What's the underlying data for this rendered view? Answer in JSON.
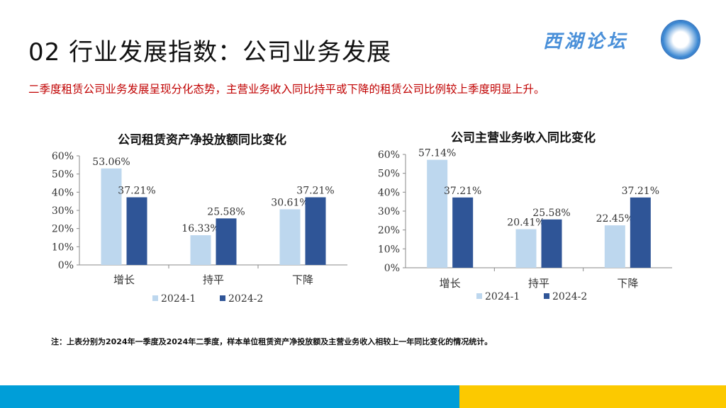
{
  "header": {
    "title": "02 行业发展指数：公司业务发展",
    "subtitle": "二季度租赁公司业务发展呈现分化态势，主营业务收入同比持平或下降的租赁公司比例较上季度明显上升。",
    "logo_text": "西湖论坛"
  },
  "note": "注：上表分别为2024年一季度及2024年二季度，样本单位租赁资产净投放额及主营业务收入相较上一年同比变化的情况统计。",
  "colors": {
    "series1": "#bdd7ee",
    "series2": "#2f5597",
    "bottom_left": "#009ed8",
    "bottom_right": "#fcc900"
  },
  "chart_data": [
    {
      "type": "bar",
      "title": "公司租赁资产净投放额同比变化",
      "categories": [
        "增长",
        "持平",
        "下降"
      ],
      "ylim": [
        0,
        60
      ],
      "yticks": [
        "0%",
        "10%",
        "20%",
        "30%",
        "40%",
        "50%",
        "60%"
      ],
      "legend": "bottom",
      "grid": false,
      "series": [
        {
          "name": "2024-1",
          "values": [
            53.06,
            16.33,
            30.61
          ],
          "labels": [
            "53.06%",
            "16.33%",
            "30.61%"
          ]
        },
        {
          "name": "2024-2",
          "values": [
            37.21,
            25.58,
            37.21
          ],
          "labels": [
            "37.21%",
            "25.58%",
            "37.21%"
          ]
        }
      ]
    },
    {
      "type": "bar",
      "title": "公司主营业务收入同比变化",
      "categories": [
        "增长",
        "持平",
        "下降"
      ],
      "ylim": [
        0,
        60
      ],
      "yticks": [
        "0%",
        "10%",
        "20%",
        "30%",
        "40%",
        "50%",
        "60%"
      ],
      "legend": "bottom",
      "grid": false,
      "series": [
        {
          "name": "2024-1",
          "values": [
            57.14,
            20.41,
            22.45
          ],
          "labels": [
            "57.14%",
            "20.41%",
            "22.45%"
          ]
        },
        {
          "name": "2024-2",
          "values": [
            37.21,
            25.58,
            37.21
          ],
          "labels": [
            "37.21%",
            "25.58%",
            "37.21%"
          ]
        }
      ]
    }
  ]
}
